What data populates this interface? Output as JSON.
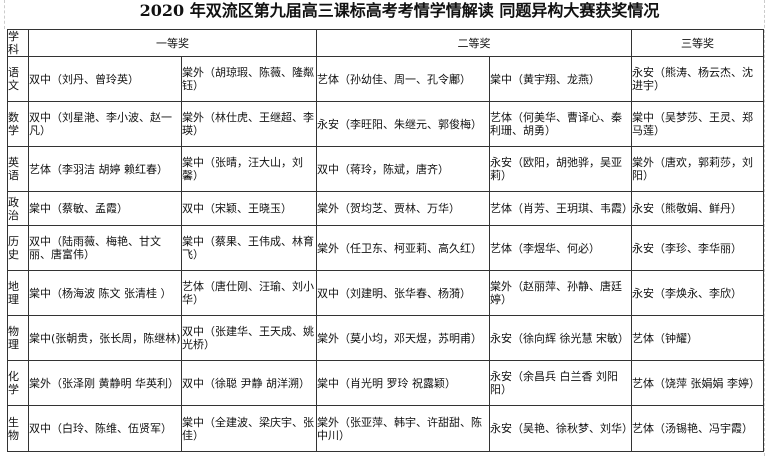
{
  "title": "2020 年双流区第九届高三课标高考考情学情解读  同题异构大赛获奖情况",
  "headers": {
    "subject": "学科",
    "first": "一等奖",
    "second": "二等奖",
    "third": "三等奖"
  },
  "rows": [
    {
      "subject": "语文",
      "first": [
        "双中（刘丹、曾玲英）",
        "棠外（胡琼瑕、陈薇、隆粼钰）"
      ],
      "second": [
        "艺体（孙幼佳、周一、孔令鄘）",
        "棠中（黄宇翔、龙燕）"
      ],
      "third": "永安（熊涛、杨云杰、沈进宇）"
    },
    {
      "subject": "数学",
      "first": [
        "双中（刘星滟、李小波、赵一凡）",
        "棠外（林仕虎、王继超、李瑛）"
      ],
      "second": [
        "永安（李旺阳、朱继元、郭俊梅）",
        "艺体（何美华、曹译心、秦利珊、胡勇）"
      ],
      "third": "棠中（吴梦莎、王灵、郑马莲）"
    },
    {
      "subject": "英语",
      "first": [
        "艺体（李羽洁 胡婷 赖红春）",
        "棠中（张晴，汪大山，刘馨）"
      ],
      "second": [
        "双中（蒋玲，陈斌，唐齐）",
        "永安（欧阳，胡弛骅，吴亚莉）"
      ],
      "third": "棠外（唐欢，郭莉莎，刘阳）"
    },
    {
      "subject": "政治",
      "first": [
        "棠中（蔡敏、孟霞）",
        "双中（宋颖、王晓玉）"
      ],
      "second": [
        "棠外（贺均芝、贾林、万华）",
        "艺体（肖芳、王玥琪、韦霞）"
      ],
      "third": "永安（熊敬娟、鲜丹）"
    },
    {
      "subject": "历史",
      "first": [
        "双中（陆雨薇、梅艳、甘文丽、唐富伟）",
        "棠中（蔡果、王伟成、林育飞）"
      ],
      "second": [
        "棠外（任卫东、柯亚莉、高久红）",
        "艺体（李煜华、何必）"
      ],
      "third": "永安（李珍、李华丽）"
    },
    {
      "subject": "地理",
      "first": [
        "棠中（杨海波 陈文 张清桂 ）",
        "艺体（唐仕刚、汪瑜、刘小华）"
      ],
      "second": [
        "双中（刘建明、张华春、杨漪）",
        "棠外（赵丽萍、孙静、唐廷婷）"
      ],
      "third": "永安（李焕永、李欣）"
    },
    {
      "subject": "物理",
      "first": [
        "棠中(张朝贵，张长周，陈继林)",
        "双中（张建华、王天成、姚光桥）"
      ],
      "second": [
        "棠外（莫小均，邓天煜，苏明甫）",
        "永安（徐向辉 徐光慧 宋敏）"
      ],
      "third": "艺体（钟耀）"
    },
    {
      "subject": "化学",
      "first": [
        "棠外（张泽刚 黄静明 华英利）",
        "双中（徐聪 尹静 胡洋溯）"
      ],
      "second": [
        "棠中（肖光明 罗玲 祝露颖）",
        "永安（余昌兵 白兰香 刘阳阳）"
      ],
      "third": "艺体（饶萍 张娟娟 李婷）"
    },
    {
      "subject": "生物",
      "first": [
        "双中（白玲、陈维、伍贤军）",
        "棠中（全建波、梁庆宇、张佳）"
      ],
      "second": [
        "棠外（张亚萍、韩宇、许甜甜、陈中川）",
        "永安（吴艳、徐秋梦、刘华）"
      ],
      "third": "艺体（汤锡艳、冯宇霞）"
    }
  ]
}
